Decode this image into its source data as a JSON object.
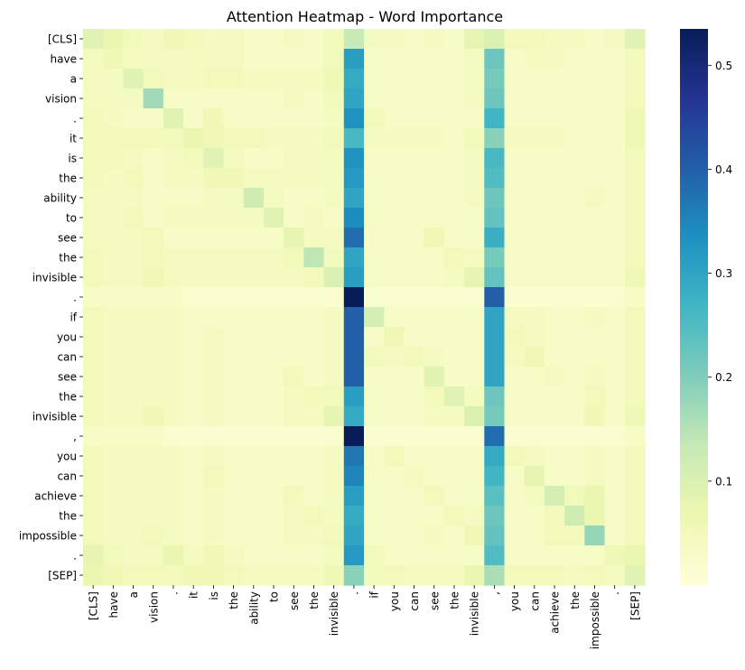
{
  "chart_data": {
    "type": "heatmap",
    "title": "Attention Heatmap - Word Importance",
    "xlabel": "",
    "ylabel": "",
    "colormap": "YlGnBu",
    "colorbar": {
      "range": [
        0.0,
        0.535
      ],
      "ticks": [
        "0.1",
        "0.2",
        "0.3",
        "0.4",
        "0.5"
      ]
    },
    "tokens": [
      "[CLS]",
      "have",
      "a",
      "vision",
      ".",
      "it",
      "is",
      "the",
      "ability",
      "to",
      "see",
      "the",
      "invisible",
      ".",
      "if",
      "you",
      "can",
      "see",
      "the",
      "invisible",
      ",",
      "you",
      "can",
      "achieve",
      "the",
      "impossible",
      ".",
      "[SEP]"
    ],
    "values": [
      [
        0.09,
        0.07,
        0.05,
        0.04,
        0.06,
        0.05,
        0.04,
        0.04,
        0.03,
        0.03,
        0.04,
        0.03,
        0.05,
        0.13,
        0.04,
        0.04,
        0.03,
        0.04,
        0.03,
        0.08,
        0.1,
        0.05,
        0.05,
        0.04,
        0.04,
        0.03,
        0.04,
        0.09
      ],
      [
        0.04,
        0.06,
        0.04,
        0.04,
        0.04,
        0.04,
        0.04,
        0.04,
        0.03,
        0.03,
        0.03,
        0.03,
        0.05,
        0.31,
        0.03,
        0.03,
        0.03,
        0.03,
        0.03,
        0.04,
        0.22,
        0.03,
        0.04,
        0.04,
        0.03,
        0.03,
        0.03,
        0.05
      ],
      [
        0.04,
        0.04,
        0.09,
        0.05,
        0.04,
        0.04,
        0.05,
        0.05,
        0.04,
        0.04,
        0.04,
        0.04,
        0.06,
        0.29,
        0.03,
        0.03,
        0.03,
        0.03,
        0.03,
        0.04,
        0.21,
        0.03,
        0.03,
        0.03,
        0.03,
        0.03,
        0.03,
        0.05
      ],
      [
        0.04,
        0.04,
        0.04,
        0.17,
        0.03,
        0.03,
        0.03,
        0.03,
        0.03,
        0.03,
        0.04,
        0.03,
        0.05,
        0.3,
        0.03,
        0.03,
        0.03,
        0.03,
        0.03,
        0.04,
        0.22,
        0.03,
        0.03,
        0.03,
        0.03,
        0.03,
        0.03,
        0.05
      ],
      [
        0.05,
        0.04,
        0.03,
        0.03,
        0.09,
        0.03,
        0.06,
        0.03,
        0.03,
        0.03,
        0.03,
        0.03,
        0.04,
        0.33,
        0.05,
        0.03,
        0.03,
        0.03,
        0.03,
        0.03,
        0.27,
        0.03,
        0.03,
        0.03,
        0.03,
        0.03,
        0.03,
        0.06
      ],
      [
        0.05,
        0.05,
        0.05,
        0.05,
        0.05,
        0.07,
        0.06,
        0.05,
        0.05,
        0.04,
        0.04,
        0.04,
        0.05,
        0.26,
        0.04,
        0.04,
        0.04,
        0.04,
        0.03,
        0.05,
        0.19,
        0.04,
        0.04,
        0.04,
        0.03,
        0.03,
        0.03,
        0.06
      ],
      [
        0.05,
        0.05,
        0.04,
        0.03,
        0.04,
        0.05,
        0.09,
        0.04,
        0.03,
        0.03,
        0.04,
        0.04,
        0.04,
        0.33,
        0.03,
        0.03,
        0.03,
        0.03,
        0.03,
        0.04,
        0.26,
        0.03,
        0.03,
        0.03,
        0.03,
        0.03,
        0.03,
        0.05
      ],
      [
        0.05,
        0.04,
        0.05,
        0.03,
        0.04,
        0.04,
        0.06,
        0.06,
        0.04,
        0.04,
        0.04,
        0.04,
        0.04,
        0.32,
        0.03,
        0.03,
        0.03,
        0.03,
        0.03,
        0.04,
        0.25,
        0.03,
        0.03,
        0.03,
        0.03,
        0.03,
        0.03,
        0.05
      ],
      [
        0.04,
        0.04,
        0.04,
        0.03,
        0.03,
        0.03,
        0.04,
        0.04,
        0.12,
        0.04,
        0.03,
        0.03,
        0.04,
        0.3,
        0.03,
        0.03,
        0.03,
        0.03,
        0.03,
        0.04,
        0.22,
        0.03,
        0.03,
        0.03,
        0.03,
        0.04,
        0.03,
        0.05
      ],
      [
        0.04,
        0.04,
        0.05,
        0.03,
        0.04,
        0.04,
        0.04,
        0.04,
        0.04,
        0.09,
        0.03,
        0.04,
        0.03,
        0.34,
        0.03,
        0.03,
        0.03,
        0.03,
        0.03,
        0.03,
        0.23,
        0.03,
        0.03,
        0.03,
        0.03,
        0.03,
        0.03,
        0.05
      ],
      [
        0.04,
        0.04,
        0.04,
        0.05,
        0.03,
        0.03,
        0.03,
        0.03,
        0.03,
        0.03,
        0.08,
        0.04,
        0.04,
        0.38,
        0.03,
        0.03,
        0.03,
        0.06,
        0.03,
        0.03,
        0.28,
        0.03,
        0.03,
        0.03,
        0.03,
        0.03,
        0.03,
        0.05
      ],
      [
        0.05,
        0.04,
        0.04,
        0.05,
        0.04,
        0.04,
        0.04,
        0.04,
        0.04,
        0.04,
        0.05,
        0.14,
        0.05,
        0.3,
        0.03,
        0.03,
        0.03,
        0.03,
        0.05,
        0.04,
        0.21,
        0.03,
        0.03,
        0.03,
        0.03,
        0.03,
        0.03,
        0.05
      ],
      [
        0.05,
        0.04,
        0.04,
        0.06,
        0.04,
        0.04,
        0.04,
        0.04,
        0.04,
        0.04,
        0.04,
        0.05,
        0.1,
        0.31,
        0.03,
        0.03,
        0.03,
        0.03,
        0.04,
        0.08,
        0.23,
        0.03,
        0.03,
        0.03,
        0.03,
        0.03,
        0.03,
        0.06
      ],
      [
        0.03,
        0.03,
        0.03,
        0.03,
        0.03,
        0.02,
        0.02,
        0.02,
        0.02,
        0.02,
        0.02,
        0.02,
        0.02,
        0.535,
        0.02,
        0.02,
        0.02,
        0.02,
        0.02,
        0.02,
        0.4,
        0.02,
        0.02,
        0.02,
        0.02,
        0.02,
        0.02,
        0.03
      ],
      [
        0.05,
        0.04,
        0.04,
        0.04,
        0.04,
        0.03,
        0.03,
        0.03,
        0.03,
        0.03,
        0.03,
        0.03,
        0.04,
        0.4,
        0.11,
        0.03,
        0.03,
        0.03,
        0.03,
        0.03,
        0.3,
        0.04,
        0.04,
        0.03,
        0.03,
        0.04,
        0.03,
        0.05
      ],
      [
        0.05,
        0.04,
        0.04,
        0.04,
        0.04,
        0.03,
        0.04,
        0.03,
        0.03,
        0.03,
        0.03,
        0.03,
        0.04,
        0.4,
        0.03,
        0.06,
        0.03,
        0.03,
        0.03,
        0.03,
        0.3,
        0.05,
        0.04,
        0.03,
        0.03,
        0.03,
        0.03,
        0.05
      ],
      [
        0.05,
        0.04,
        0.04,
        0.04,
        0.04,
        0.03,
        0.04,
        0.03,
        0.03,
        0.03,
        0.03,
        0.03,
        0.04,
        0.4,
        0.05,
        0.04,
        0.05,
        0.04,
        0.03,
        0.03,
        0.3,
        0.04,
        0.06,
        0.03,
        0.03,
        0.03,
        0.03,
        0.05
      ],
      [
        0.05,
        0.04,
        0.04,
        0.04,
        0.04,
        0.03,
        0.04,
        0.03,
        0.03,
        0.03,
        0.05,
        0.03,
        0.04,
        0.4,
        0.03,
        0.03,
        0.03,
        0.09,
        0.03,
        0.03,
        0.3,
        0.03,
        0.03,
        0.04,
        0.03,
        0.04,
        0.03,
        0.05
      ],
      [
        0.05,
        0.04,
        0.04,
        0.04,
        0.04,
        0.03,
        0.04,
        0.03,
        0.03,
        0.03,
        0.04,
        0.05,
        0.05,
        0.31,
        0.03,
        0.03,
        0.03,
        0.05,
        0.09,
        0.04,
        0.22,
        0.03,
        0.03,
        0.03,
        0.03,
        0.05,
        0.03,
        0.05
      ],
      [
        0.05,
        0.04,
        0.04,
        0.06,
        0.04,
        0.03,
        0.04,
        0.03,
        0.03,
        0.03,
        0.04,
        0.04,
        0.08,
        0.29,
        0.03,
        0.03,
        0.03,
        0.04,
        0.04,
        0.1,
        0.21,
        0.03,
        0.03,
        0.03,
        0.03,
        0.06,
        0.03,
        0.06
      ],
      [
        0.03,
        0.03,
        0.03,
        0.03,
        0.02,
        0.02,
        0.02,
        0.02,
        0.02,
        0.02,
        0.02,
        0.02,
        0.02,
        0.535,
        0.02,
        0.02,
        0.02,
        0.02,
        0.02,
        0.02,
        0.38,
        0.02,
        0.02,
        0.02,
        0.02,
        0.02,
        0.02,
        0.03
      ],
      [
        0.05,
        0.04,
        0.04,
        0.04,
        0.04,
        0.03,
        0.04,
        0.03,
        0.03,
        0.03,
        0.03,
        0.03,
        0.04,
        0.37,
        0.03,
        0.05,
        0.03,
        0.03,
        0.03,
        0.03,
        0.29,
        0.05,
        0.04,
        0.03,
        0.03,
        0.04,
        0.03,
        0.05
      ],
      [
        0.05,
        0.04,
        0.04,
        0.04,
        0.04,
        0.03,
        0.05,
        0.03,
        0.03,
        0.03,
        0.03,
        0.03,
        0.04,
        0.35,
        0.03,
        0.03,
        0.04,
        0.03,
        0.03,
        0.03,
        0.27,
        0.03,
        0.08,
        0.03,
        0.03,
        0.04,
        0.03,
        0.05
      ],
      [
        0.05,
        0.04,
        0.04,
        0.04,
        0.04,
        0.03,
        0.04,
        0.03,
        0.03,
        0.03,
        0.05,
        0.03,
        0.04,
        0.31,
        0.03,
        0.03,
        0.03,
        0.05,
        0.03,
        0.03,
        0.24,
        0.03,
        0.04,
        0.11,
        0.05,
        0.07,
        0.03,
        0.05
      ],
      [
        0.05,
        0.04,
        0.04,
        0.04,
        0.04,
        0.03,
        0.04,
        0.03,
        0.03,
        0.03,
        0.04,
        0.05,
        0.04,
        0.29,
        0.03,
        0.03,
        0.03,
        0.03,
        0.05,
        0.04,
        0.22,
        0.03,
        0.03,
        0.05,
        0.12,
        0.07,
        0.03,
        0.05
      ],
      [
        0.05,
        0.04,
        0.04,
        0.05,
        0.04,
        0.03,
        0.04,
        0.03,
        0.03,
        0.03,
        0.04,
        0.04,
        0.05,
        0.3,
        0.03,
        0.03,
        0.03,
        0.04,
        0.03,
        0.06,
        0.23,
        0.03,
        0.03,
        0.05,
        0.05,
        0.18,
        0.03,
        0.05
      ],
      [
        0.08,
        0.05,
        0.04,
        0.04,
        0.07,
        0.04,
        0.06,
        0.04,
        0.03,
        0.03,
        0.03,
        0.03,
        0.04,
        0.32,
        0.05,
        0.03,
        0.03,
        0.03,
        0.03,
        0.03,
        0.25,
        0.03,
        0.03,
        0.03,
        0.03,
        0.03,
        0.06,
        0.07
      ],
      [
        0.07,
        0.06,
        0.05,
        0.05,
        0.05,
        0.06,
        0.06,
        0.05,
        0.04,
        0.04,
        0.04,
        0.04,
        0.06,
        0.19,
        0.05,
        0.05,
        0.04,
        0.04,
        0.04,
        0.07,
        0.16,
        0.05,
        0.05,
        0.05,
        0.04,
        0.05,
        0.04,
        0.09
      ]
    ]
  }
}
